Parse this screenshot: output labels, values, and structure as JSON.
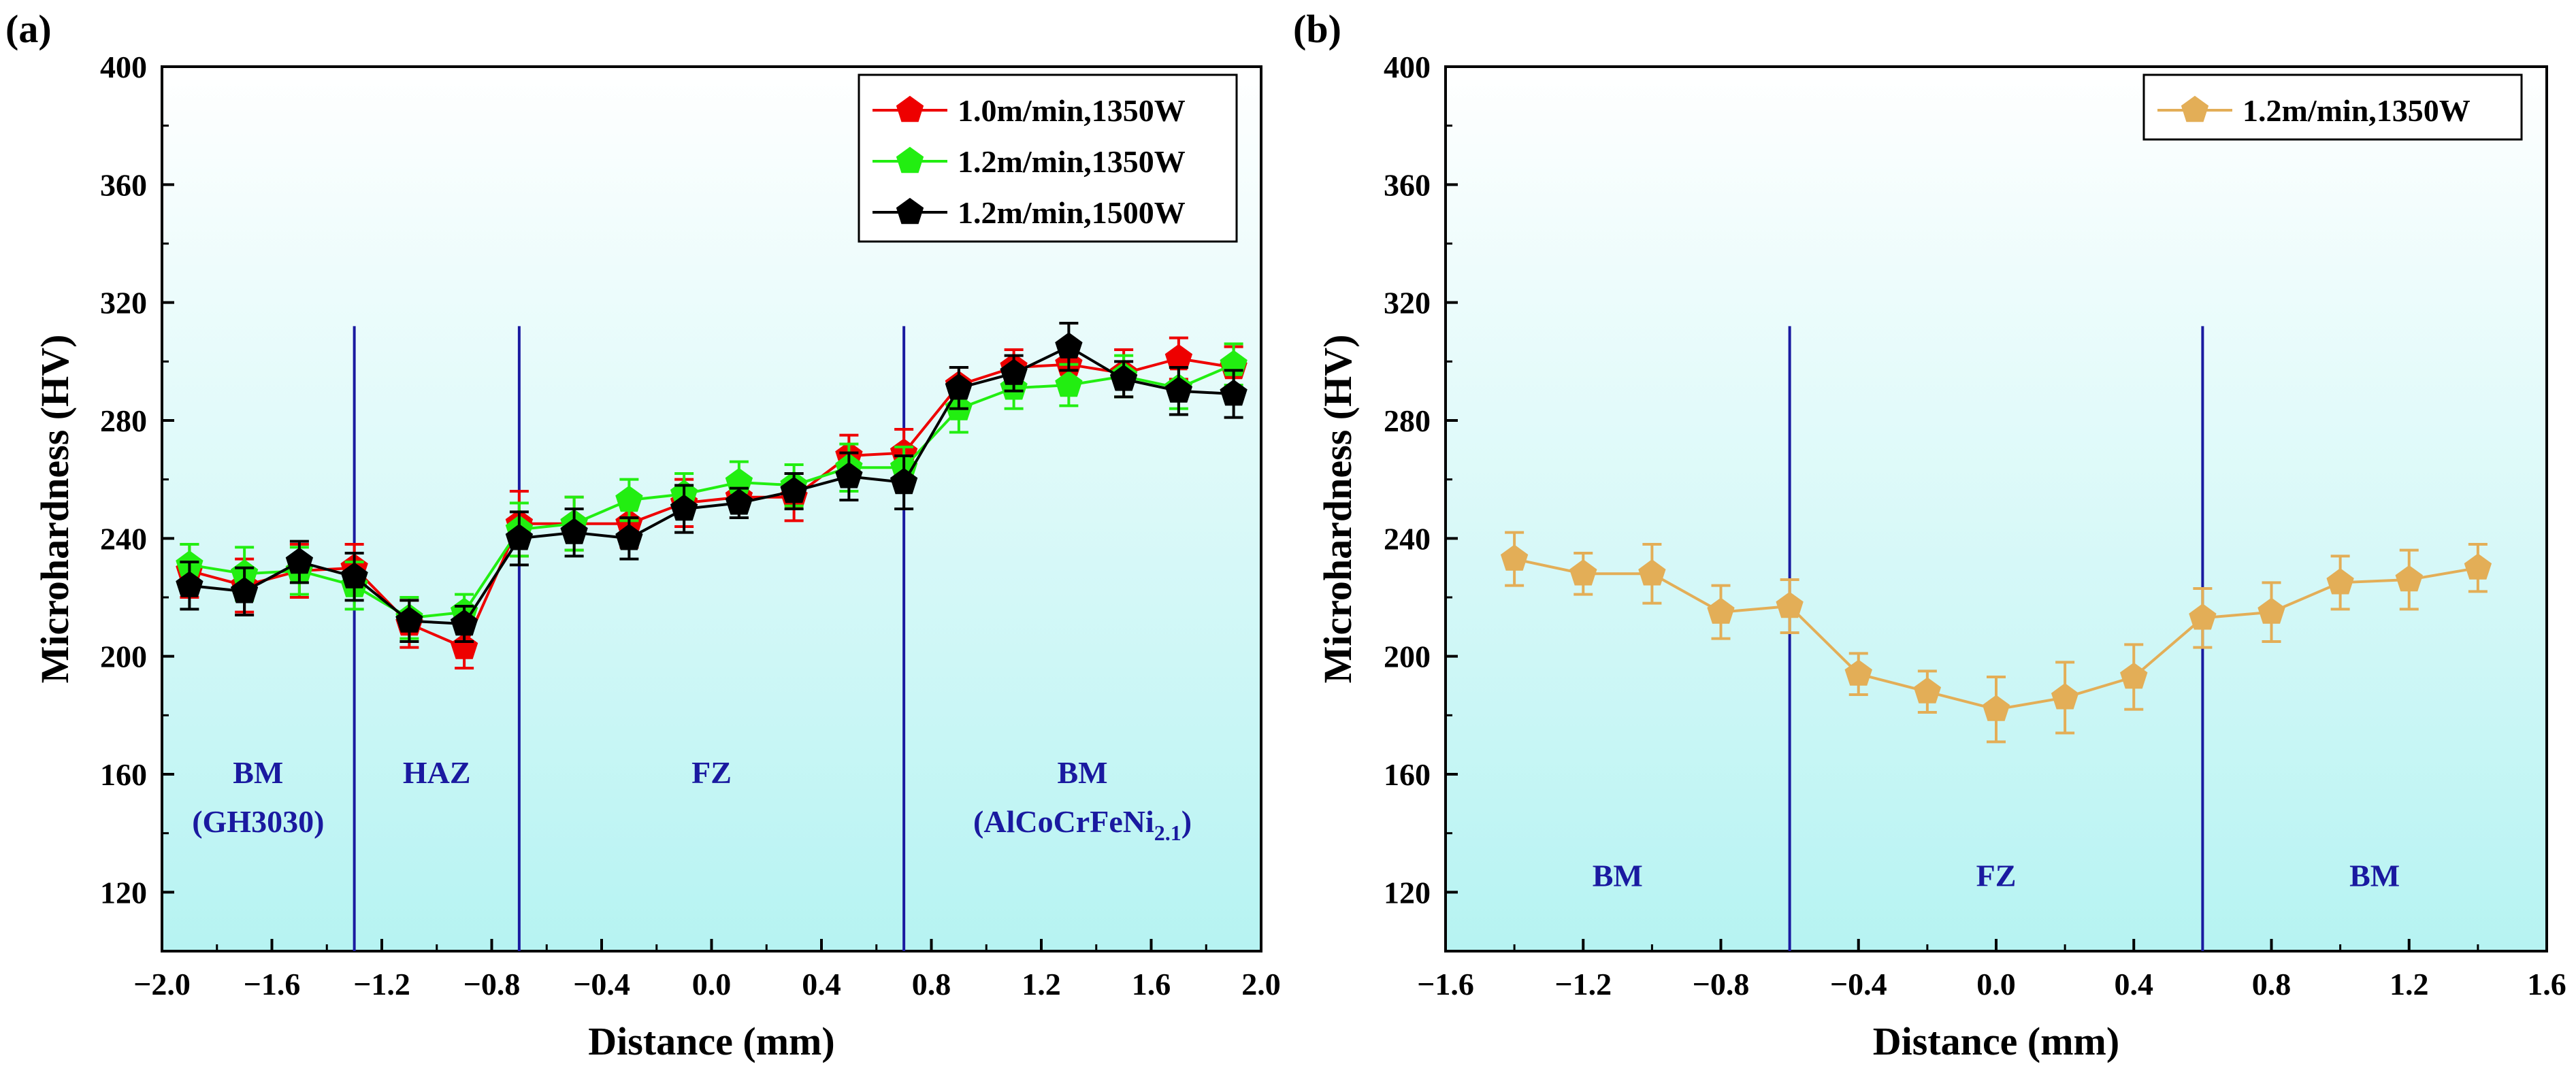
{
  "figure": {
    "panels": [
      {
        "label": "(a)",
        "ylabel": "Microhardness (HV)",
        "xlabel": "Distance (mm)"
      },
      {
        "label": "(b)",
        "ylabel": "Microhardness (HV)",
        "xlabel": "Distance (mm)"
      }
    ]
  },
  "colors": {
    "bg_top": "#ffffff",
    "bg_bottom": "#b9f5f4",
    "zone_line": "#1a1aa0",
    "zone_text": "#1a1aa0",
    "red": "#ee0000",
    "green": "#22ee11",
    "black": "#000000",
    "gold": "#e3ae57"
  },
  "chart_data": [
    {
      "type": "line",
      "panel_label": "(a)",
      "xlabel": "Distance (mm)",
      "ylabel": "Microhardness (HV)",
      "xlim": [
        -2.0,
        2.0
      ],
      "ylim": [
        100,
        400
      ],
      "xticks": [
        "−2.0",
        "−1.6",
        "−1.2",
        "−0.8",
        "−0.4",
        "0.0",
        "0.4",
        "0.8",
        "1.2",
        "1.6",
        "2.0"
      ],
      "xtick_values": [
        -2.0,
        -1.6,
        -1.2,
        -0.8,
        -0.4,
        0.0,
        0.4,
        0.8,
        1.2,
        1.6,
        2.0
      ],
      "yticks": [
        "120",
        "160",
        "200",
        "240",
        "280",
        "320",
        "360",
        "400"
      ],
      "ytick_values": [
        120,
        160,
        200,
        240,
        280,
        320,
        360,
        400
      ],
      "legend_position": "top-right",
      "zone_boundaries": [
        -1.3,
        -0.7,
        0.7
      ],
      "zones": [
        {
          "lines": [
            "BM",
            "(GH3030)"
          ],
          "x": -1.65
        },
        {
          "lines": [
            "HAZ"
          ],
          "x": -1.0
        },
        {
          "lines": [
            "FZ"
          ],
          "x": 0.0
        },
        {
          "lines": [
            "BM",
            "(AlCoCrFeNi"
          ],
          "subscript": "2.1",
          "closing": ")",
          "x": 1.35
        }
      ],
      "x": [
        -1.9,
        -1.7,
        -1.5,
        -1.3,
        -1.1,
        -0.9,
        -0.7,
        -0.5,
        -0.3,
        -0.1,
        0.1,
        0.3,
        0.5,
        0.7,
        0.9,
        1.1,
        1.3,
        1.5,
        1.7,
        1.9
      ],
      "series": [
        {
          "name": "1.0m/min,1350W",
          "color": "#ee0000",
          "values": [
            229,
            224,
            229,
            230,
            211,
            203,
            245,
            245,
            245,
            252,
            254,
            254,
            268,
            269,
            292,
            298,
            299,
            296,
            301,
            298
          ],
          "errors": [
            9,
            9,
            9,
            8,
            8,
            7,
            11,
            9,
            8,
            8,
            7,
            8,
            7,
            8,
            6,
            6,
            6,
            8,
            7,
            7
          ]
        },
        {
          "name": "1.2m/min,1350W",
          "color": "#22ee11",
          "values": [
            231,
            228,
            229,
            224,
            213,
            215,
            243,
            245,
            253,
            255,
            259,
            258,
            264,
            264,
            284,
            291,
            292,
            295,
            291,
            299
          ],
          "errors": [
            7,
            9,
            8,
            8,
            7,
            6,
            9,
            9,
            7,
            7,
            7,
            7,
            8,
            7,
            8,
            7,
            7,
            7,
            7,
            7
          ]
        },
        {
          "name": "1.2m/min,1500W",
          "color": "#000000",
          "values": [
            224,
            222,
            232,
            227,
            212,
            211,
            240,
            242,
            240,
            250,
            252,
            256,
            261,
            259,
            291,
            296,
            305,
            294,
            290,
            289
          ],
          "errors": [
            8,
            8,
            7,
            8,
            7,
            6,
            9,
            8,
            7,
            8,
            5,
            6,
            8,
            9,
            7,
            6,
            8,
            6,
            8,
            8
          ]
        }
      ]
    },
    {
      "type": "line",
      "panel_label": "(b)",
      "xlabel": "Distance (mm)",
      "ylabel": "Microhardness (HV)",
      "xlim": [
        -1.6,
        1.6
      ],
      "ylim": [
        100,
        400
      ],
      "xticks": [
        "−1.6",
        "−1.2",
        "−0.8",
        "−0.4",
        "0.0",
        "0.4",
        "0.8",
        "1.2",
        "1.6"
      ],
      "xtick_values": [
        -1.6,
        -1.2,
        -0.8,
        -0.4,
        0.0,
        0.4,
        0.8,
        1.2,
        1.6
      ],
      "yticks": [
        "120",
        "160",
        "200",
        "240",
        "280",
        "320",
        "360",
        "400"
      ],
      "ytick_values": [
        120,
        160,
        200,
        240,
        280,
        320,
        360,
        400
      ],
      "legend_position": "top-right",
      "zone_boundaries": [
        -0.6,
        0.6
      ],
      "zones": [
        {
          "lines": [
            "BM"
          ],
          "x": -1.1
        },
        {
          "lines": [
            "FZ"
          ],
          "x": 0.0
        },
        {
          "lines": [
            "BM"
          ],
          "x": 1.1
        }
      ],
      "x": [
        -1.4,
        -1.2,
        -1.0,
        -0.8,
        -0.6,
        -0.4,
        -0.2,
        0.0,
        0.2,
        0.4,
        0.6,
        0.8,
        1.0,
        1.2,
        1.4
      ],
      "series": [
        {
          "name": "1.2m/min,1350W",
          "color": "#e3ae57",
          "values": [
            233,
            228,
            228,
            215,
            217,
            194,
            188,
            182,
            186,
            193,
            213,
            215,
            225,
            226,
            230
          ],
          "errors": [
            9,
            7,
            10,
            9,
            9,
            7,
            7,
            11,
            12,
            11,
            10,
            10,
            9,
            10,
            8
          ]
        }
      ]
    }
  ]
}
